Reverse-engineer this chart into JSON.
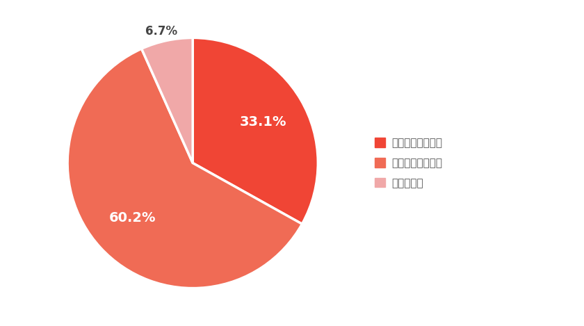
{
  "slices": [
    33.1,
    60.2,
    6.7
  ],
  "colors": [
    "#f04535",
    "#f06b55",
    "#f0a8a8"
  ],
  "labels": [
    "行ったことがある",
    "行ったことがない",
    "わからない"
  ],
  "pct_values": [
    33.1,
    60.2,
    6.7
  ],
  "background_color": "#ffffff",
  "legend_fontsize": 11,
  "autopct_fontsize": 14,
  "startangle": 90,
  "wedge_linewidth": 2.5,
  "wedge_linecolor": "#ffffff",
  "legend_colors": [
    "#f04535",
    "#f06b55",
    "#f0a8a8"
  ],
  "legend_text_color": "#555555",
  "pct_colors": [
    "#ffffff",
    "#ffffff",
    "#444444"
  ]
}
